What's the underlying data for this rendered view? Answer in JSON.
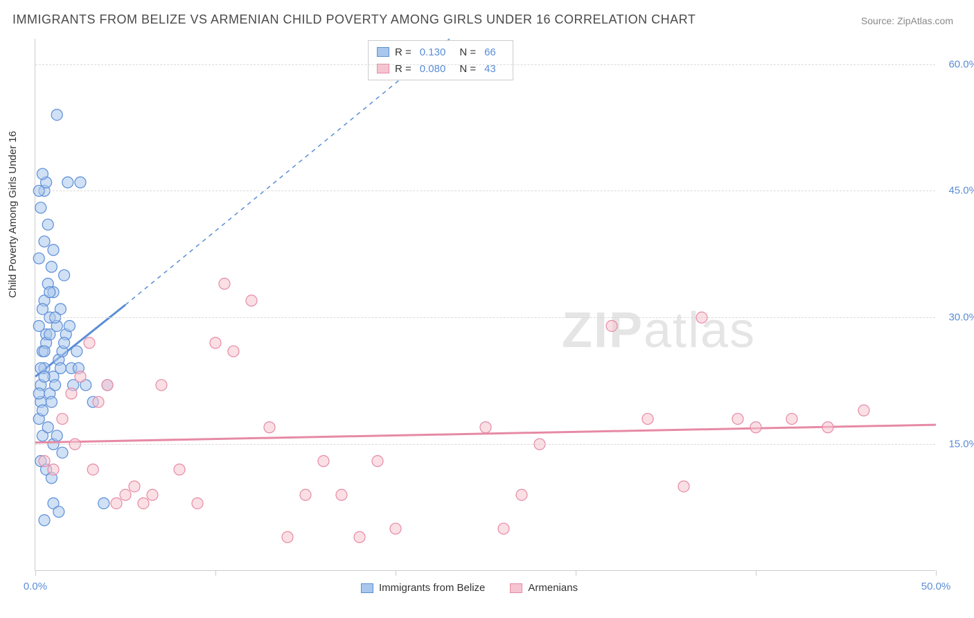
{
  "title": "IMMIGRANTS FROM BELIZE VS ARMENIAN CHILD POVERTY AMONG GIRLS UNDER 16 CORRELATION CHART",
  "source_label": "Source: ZipAtlas.com",
  "ylabel": "Child Poverty Among Girls Under 16",
  "watermark": {
    "bold": "ZIP",
    "rest": "atlas"
  },
  "chart": {
    "type": "scatter",
    "xlim": [
      0,
      50
    ],
    "ylim": [
      0,
      63
    ],
    "x_ticks": [
      0,
      10,
      20,
      30,
      40,
      50
    ],
    "x_tick_labels": {
      "0": "0.0%",
      "50": "50.0%"
    },
    "y_ticks": [
      15,
      30,
      45,
      60
    ],
    "y_tick_labels": {
      "15": "15.0%",
      "30": "30.0%",
      "45": "45.0%",
      "60": "60.0%"
    },
    "background_color": "#ffffff",
    "grid_color": "#d9d9d9",
    "tick_label_color": "#5a8dd6",
    "marker_radius": 8,
    "marker_opacity": 0.55,
    "series": [
      {
        "name": "Immigrants from Belize",
        "fill": "#a9c7ec",
        "stroke": "#5a8dd6",
        "r_value": "0.130",
        "n_value": "66",
        "trend": {
          "solid": [
            [
              0,
              23
            ],
            [
              5,
              31.5
            ]
          ],
          "dashed": [
            [
              5,
              31.5
            ],
            [
              23,
              63
            ]
          ]
        },
        "points": [
          [
            0.2,
            18
          ],
          [
            0.3,
            20
          ],
          [
            0.3,
            22
          ],
          [
            0.5,
            24
          ],
          [
            0.4,
            26
          ],
          [
            0.6,
            28
          ],
          [
            0.8,
            30
          ],
          [
            0.5,
            32
          ],
          [
            0.7,
            34
          ],
          [
            0.9,
            36
          ],
          [
            1.0,
            38
          ],
          [
            0.6,
            27
          ],
          [
            1.2,
            29
          ],
          [
            1.4,
            31
          ],
          [
            1.0,
            33
          ],
          [
            1.6,
            35
          ],
          [
            0.4,
            19
          ],
          [
            0.8,
            21
          ],
          [
            1.0,
            23
          ],
          [
            1.3,
            25
          ],
          [
            1.5,
            26
          ],
          [
            1.7,
            28
          ],
          [
            2.0,
            24
          ],
          [
            2.3,
            26
          ],
          [
            0.2,
            37
          ],
          [
            0.5,
            39
          ],
          [
            0.7,
            41
          ],
          [
            0.3,
            43
          ],
          [
            0.5,
            45
          ],
          [
            0.6,
            46
          ],
          [
            1.8,
            46
          ],
          [
            2.5,
            46
          ],
          [
            0.4,
            16
          ],
          [
            0.7,
            17
          ],
          [
            1.0,
            15
          ],
          [
            1.2,
            16
          ],
          [
            1.5,
            14
          ],
          [
            0.3,
            13
          ],
          [
            0.6,
            12
          ],
          [
            0.9,
            11
          ],
          [
            0.2,
            29
          ],
          [
            0.4,
            31
          ],
          [
            0.8,
            33
          ],
          [
            1.1,
            22
          ],
          [
            1.4,
            24
          ],
          [
            1.6,
            27
          ],
          [
            1.9,
            29
          ],
          [
            2.1,
            22
          ],
          [
            2.4,
            24
          ],
          [
            0.3,
            24
          ],
          [
            0.5,
            26
          ],
          [
            0.8,
            28
          ],
          [
            1.1,
            30
          ],
          [
            0.2,
            21
          ],
          [
            0.5,
            23
          ],
          [
            0.9,
            20
          ],
          [
            2.8,
            22
          ],
          [
            3.2,
            20
          ],
          [
            4.0,
            22
          ],
          [
            1.2,
            54
          ],
          [
            0.2,
            45
          ],
          [
            0.4,
            47
          ],
          [
            1.0,
            8
          ],
          [
            1.3,
            7
          ],
          [
            0.5,
            6
          ],
          [
            3.8,
            8
          ]
        ]
      },
      {
        "name": "Armenians",
        "fill": "#f6c4d0",
        "stroke": "#e68aa5",
        "r_value": "0.080",
        "n_value": "43",
        "trend": {
          "solid": [
            [
              0,
              15.2
            ],
            [
              50,
              17.3
            ]
          ]
        },
        "points": [
          [
            0.5,
            13
          ],
          [
            1.0,
            12
          ],
          [
            1.5,
            18
          ],
          [
            2.0,
            21
          ],
          [
            2.5,
            23
          ],
          [
            3.0,
            27
          ],
          [
            3.5,
            20
          ],
          [
            4.0,
            22
          ],
          [
            4.5,
            8
          ],
          [
            5.0,
            9
          ],
          [
            5.5,
            10
          ],
          [
            6.0,
            8
          ],
          [
            6.5,
            9
          ],
          [
            7.0,
            22
          ],
          [
            8.0,
            12
          ],
          [
            9.0,
            8
          ],
          [
            10.0,
            27
          ],
          [
            10.5,
            34
          ],
          [
            11.0,
            26
          ],
          [
            12.0,
            32
          ],
          [
            13.0,
            17
          ],
          [
            14.0,
            4
          ],
          [
            15.0,
            9
          ],
          [
            16.0,
            13
          ],
          [
            17.0,
            9
          ],
          [
            18.0,
            4
          ],
          [
            19.0,
            13
          ],
          [
            20.0,
            5
          ],
          [
            25.0,
            17
          ],
          [
            26.0,
            5
          ],
          [
            27.0,
            9
          ],
          [
            28.0,
            15
          ],
          [
            32.0,
            29
          ],
          [
            34.0,
            18
          ],
          [
            36.0,
            10
          ],
          [
            37.0,
            30
          ],
          [
            39.0,
            18
          ],
          [
            40.0,
            17
          ],
          [
            42.0,
            18
          ],
          [
            44.0,
            17
          ],
          [
            46.0,
            19
          ],
          [
            2.2,
            15
          ],
          [
            3.2,
            12
          ]
        ]
      }
    ]
  },
  "legend_top": {
    "rows": [
      {
        "swatch_fill": "#a9c7ec",
        "swatch_stroke": "#5a8dd6",
        "r_label": "R =",
        "r": "0.130",
        "n_label": "N =",
        "n": "66"
      },
      {
        "swatch_fill": "#f6c4d0",
        "swatch_stroke": "#e68aa5",
        "r_label": "R =",
        "r": "0.080",
        "n_label": "N =",
        "n": "43"
      }
    ]
  },
  "legend_bottom": [
    {
      "swatch_fill": "#a9c7ec",
      "swatch_stroke": "#5a8dd6",
      "label": "Immigrants from Belize"
    },
    {
      "swatch_fill": "#f6c4d0",
      "swatch_stroke": "#e68aa5",
      "label": "Armenians"
    }
  ]
}
